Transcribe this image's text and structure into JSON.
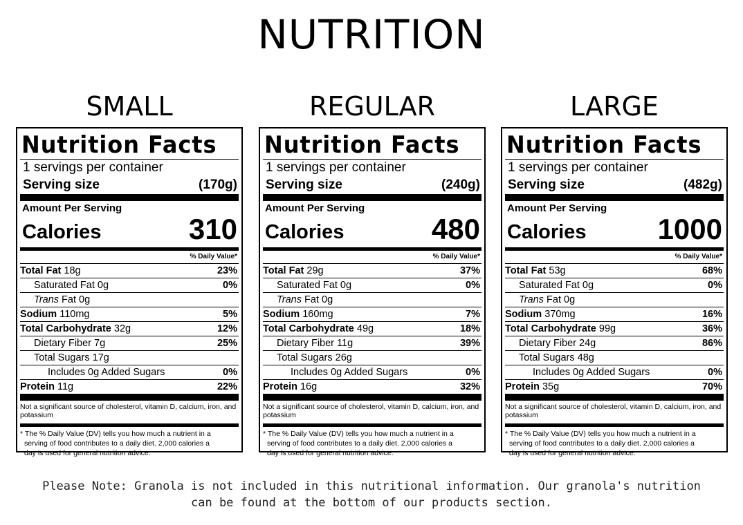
{
  "page": {
    "title": "NUTRITION",
    "note_line1": "Please Note: Granola is not included in this nutritional information. Our granola's nutrition",
    "note_line2": "can be found at the bottom of our products section."
  },
  "labels": [
    {
      "size_title": "SMALL",
      "nf_title": "Nutrition Facts",
      "servings": "1 servings per container",
      "serving_size_label": "Serving size",
      "serving_size_value": "(170g)",
      "amount_per_serving": "Amount Per Serving",
      "calories_label": "Calories",
      "calories_value": "310",
      "dv_header": "% Daily Value*",
      "total_fat": "18g",
      "total_fat_pct": "23%",
      "sat_fat": "0g",
      "sat_fat_pct": "0%",
      "trans_fat": "0g",
      "sodium": "110mg",
      "sodium_pct": "5%",
      "carb": "32g",
      "carb_pct": "12%",
      "fiber": "7g",
      "fiber_pct": "25%",
      "sugars": "17g",
      "added_sugars": "0g",
      "added_sugars_pct": "0%",
      "protein": "11g",
      "protein_pct": "22%"
    },
    {
      "size_title": "REGULAR",
      "nf_title": "Nutrition Facts",
      "servings": "1 servings per container",
      "serving_size_label": "Serving size",
      "serving_size_value": "(240g)",
      "amount_per_serving": "Amount Per Serving",
      "calories_label": "Calories",
      "calories_value": "480",
      "dv_header": "% Daily Value*",
      "total_fat": "29g",
      "total_fat_pct": "37%",
      "sat_fat": "0g",
      "sat_fat_pct": "0%",
      "trans_fat": "0g",
      "sodium": "160mg",
      "sodium_pct": "7%",
      "carb": "49g",
      "carb_pct": "18%",
      "fiber": "11g",
      "fiber_pct": "39%",
      "sugars": "26g",
      "added_sugars": "0g",
      "added_sugars_pct": "0%",
      "protein": "16g",
      "protein_pct": "32%"
    },
    {
      "size_title": "LARGE",
      "nf_title": "Nutrition Facts",
      "servings": "1 servings per container",
      "serving_size_label": "Serving size",
      "serving_size_value": "(482g)",
      "amount_per_serving": "Amount Per Serving",
      "calories_label": "Calories",
      "calories_value": "1000",
      "dv_header": "% Daily Value*",
      "total_fat": "53g",
      "total_fat_pct": "68%",
      "sat_fat": "0g",
      "sat_fat_pct": "0%",
      "trans_fat": "0g",
      "sodium": "370mg",
      "sodium_pct": "16%",
      "carb": "99g",
      "carb_pct": "36%",
      "fiber": "24g",
      "fiber_pct": "86%",
      "sugars": "48g",
      "added_sugars": "0g",
      "added_sugars_pct": "0%",
      "protein": "35g",
      "protein_pct": "70%"
    }
  ],
  "common": {
    "total_fat_label": "Total Fat",
    "sat_fat_label": "Saturated Fat",
    "trans_label": "Trans",
    "fat_label": "Fat",
    "sodium_label": "Sodium",
    "carb_label": "Total Carbohydrate",
    "fiber_label": "Dietary Fiber",
    "sugars_label": "Total Sugars",
    "includes_label": "Includes",
    "added_sugars_label": "Added Sugars",
    "protein_label": "Protein",
    "footnote1": "Not a significant source of cholesterol, vitamin D, calcium, iron, and potassium",
    "footnote2_line1": "* The % Daily Value (DV) tells you how much a nutrient in a",
    "footnote2_line2": "serving of food contributes to a daily diet. 2,000 calories a",
    "footnote2_line3": "day is used for general nutrition advice."
  }
}
